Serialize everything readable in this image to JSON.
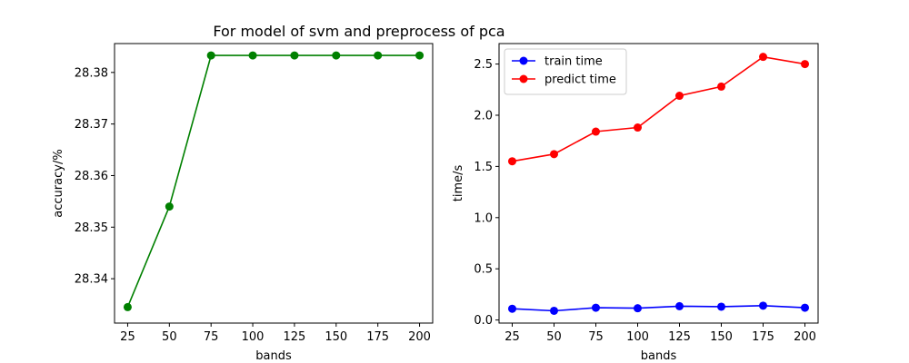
{
  "figure": {
    "title": "For model of svm and preprocess of pca"
  },
  "chart_data": [
    {
      "type": "line",
      "title": "",
      "xlabel": "bands",
      "ylabel": "accuracy/%",
      "x": [
        25,
        50,
        75,
        100,
        125,
        150,
        175,
        200
      ],
      "xticks": [
        25,
        50,
        75,
        100,
        125,
        150,
        175,
        200
      ],
      "ylim": [
        28.3314,
        28.3856
      ],
      "yticks": [
        28.34,
        28.35,
        28.36,
        28.37,
        28.38
      ],
      "series": [
        {
          "color": "#008000",
          "values": [
            28.3345,
            28.354,
            28.3833,
            28.3833,
            28.3833,
            28.3833,
            28.3833,
            28.3833
          ]
        }
      ],
      "grid": false,
      "legend": null
    },
    {
      "type": "line",
      "title": "",
      "xlabel": "bands",
      "ylabel": "time/s",
      "x": [
        25,
        50,
        75,
        100,
        125,
        150,
        175,
        200
      ],
      "xticks": [
        25,
        50,
        75,
        100,
        125,
        150,
        175,
        200
      ],
      "ylim": [
        -0.03,
        2.7
      ],
      "yticks": [
        0.0,
        0.5,
        1.0,
        1.5,
        2.0,
        2.5
      ],
      "ytick_labels": [
        "0.0",
        "0.5",
        "1.0",
        "1.5",
        "2.0",
        "2.5"
      ],
      "series": [
        {
          "name": "train time",
          "color": "#0000ff",
          "values": [
            0.11,
            0.09,
            0.12,
            0.115,
            0.135,
            0.13,
            0.14,
            0.12
          ]
        },
        {
          "name": "predict time",
          "color": "#ff0000",
          "values": [
            1.55,
            1.62,
            1.84,
            1.88,
            2.19,
            2.28,
            2.57,
            2.5
          ]
        }
      ],
      "grid": false,
      "legend": "upper-left"
    }
  ]
}
